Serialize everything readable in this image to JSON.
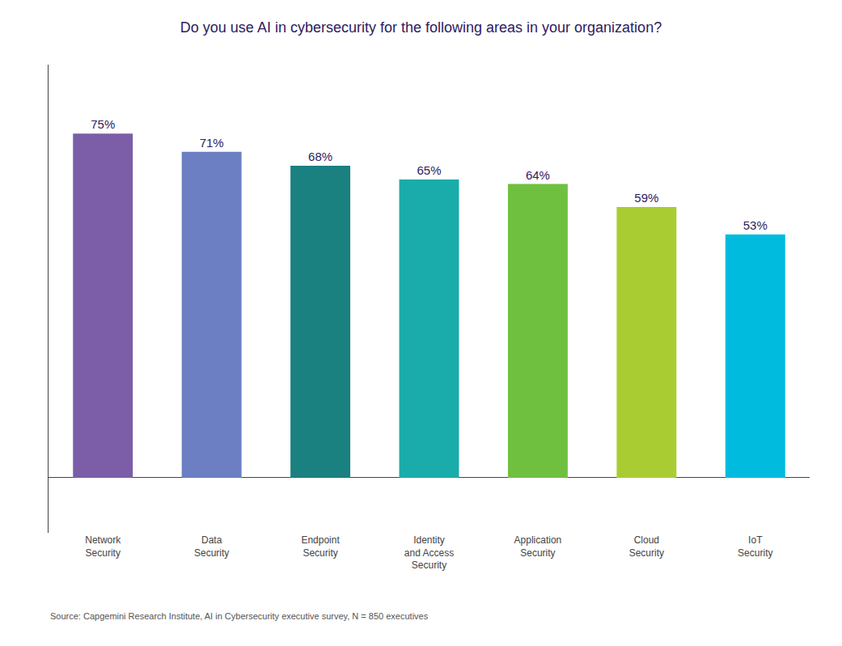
{
  "chart_data": {
    "type": "bar",
    "title": "Do you use AI in cybersecurity for the following areas in your organization?",
    "categories": [
      "Network\nSecurity",
      "Data\nSecurity",
      "Endpoint\nSecurity",
      "Identity\nand Access\nSecurity",
      "Application\nSecurity",
      "Cloud\nSecurity",
      "IoT\nSecurity"
    ],
    "values": [
      75,
      71,
      68,
      65,
      64,
      59,
      53
    ],
    "value_labels": [
      "75%",
      "71%",
      "68%",
      "65%",
      "64%",
      "59%",
      "53%"
    ],
    "colors": [
      "#7B5EA7",
      "#6B7FC2",
      "#1A8080",
      "#1AACAA",
      "#70C040",
      "#AACC33",
      "#00BBDD"
    ],
    "data_labels": true,
    "ylim": [
      -12,
      90
    ],
    "tick_labels": "x",
    "grid": false,
    "annotations": [
      "Source: Capgemini Research Institute, AI in Cybersecurity executive survey, N = 850 executives"
    ]
  }
}
